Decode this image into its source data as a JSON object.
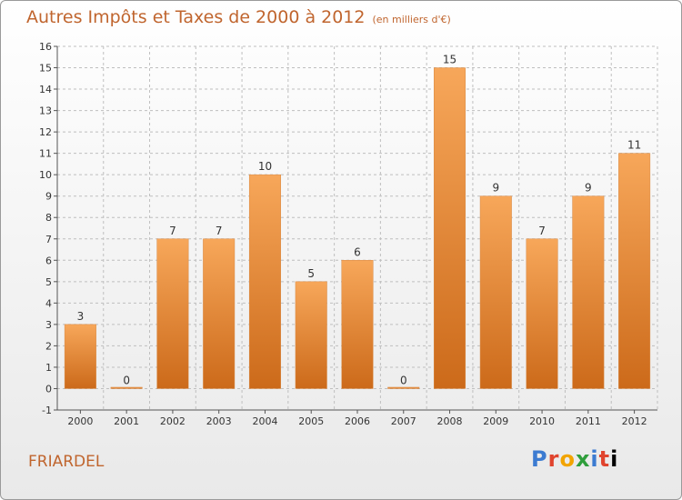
{
  "chart_data": {
    "type": "bar",
    "title": "Autres Impôts et Taxes de 2000 à 2012",
    "subtitle": "(en milliers d'€)",
    "categories": [
      "2000",
      "2001",
      "2002",
      "2003",
      "2004",
      "2005",
      "2006",
      "2007",
      "2008",
      "2009",
      "2010",
      "2011",
      "2012"
    ],
    "values": [
      3,
      0,
      7,
      7,
      10,
      5,
      6,
      0,
      15,
      9,
      7,
      9,
      11
    ],
    "ylim": [
      -1,
      16
    ],
    "yticks": [
      -1,
      0,
      1,
      2,
      3,
      4,
      5,
      6,
      7,
      8,
      9,
      10,
      11,
      12,
      13,
      14,
      15,
      16
    ],
    "grid": true,
    "colors": {
      "bar_top": "#f7a75a",
      "bar_bottom": "#cc6a1a",
      "grid": "#bfbfbf",
      "accent": "#c0652e"
    }
  },
  "footer": {
    "commune": "FRIARDEL",
    "logo_letters": [
      "P",
      "r",
      "o",
      "x",
      "i",
      "t",
      "i"
    ]
  }
}
